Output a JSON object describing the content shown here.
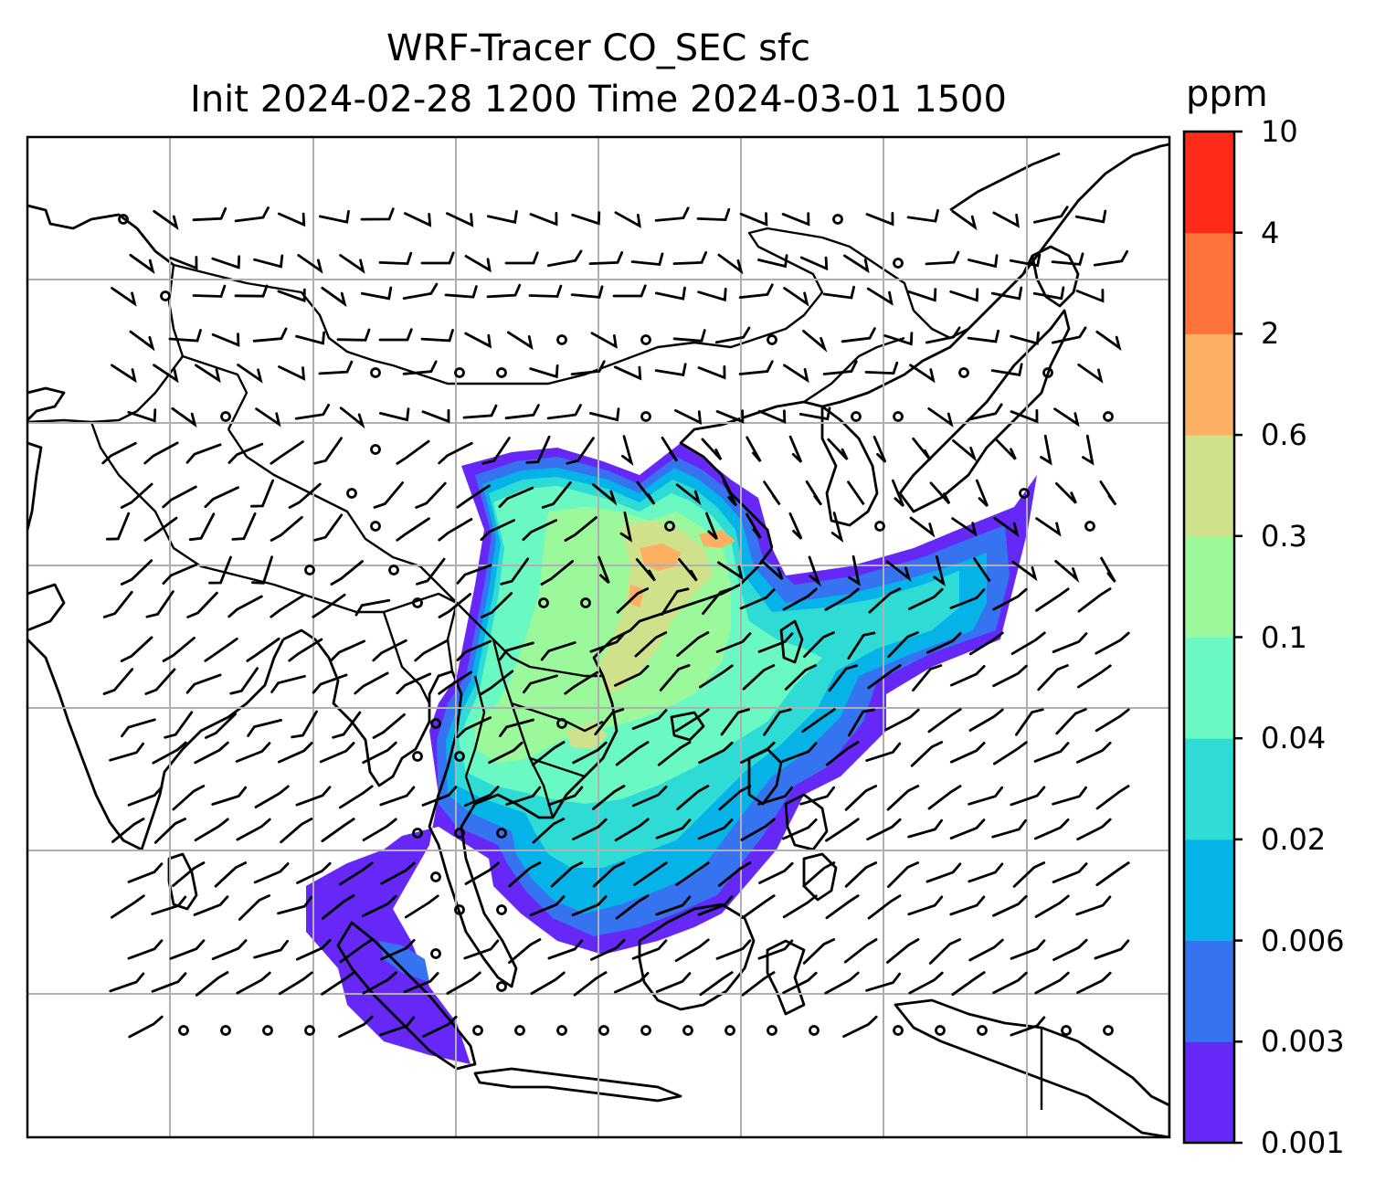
{
  "title": {
    "line1": "WRF-Tracer CO_SEC sfc",
    "line2": "Init 2024-02-28 1200 Time 2024-03-01 1500"
  },
  "colorbar": {
    "unit": "ppm",
    "levels": [
      "0.001",
      "0.003",
      "0.006",
      "0.02",
      "0.04",
      "0.1",
      "0.3",
      "0.6",
      "2",
      "4",
      "10"
    ],
    "colors": [
      "#6628f6",
      "#3573f0",
      "#06b3e9",
      "#2fdbd5",
      "#6af9c3",
      "#9bf99b",
      "#cfe18b",
      "#fdb062",
      "#ff7239",
      "#ff2a17"
    ]
  },
  "map": {
    "region": "South / Southeast / East Asia",
    "features": [
      "coastlines",
      "country borders",
      "lat-lon gridlines",
      "wind barbs",
      "CO tracer concentration shading"
    ],
    "grid": true
  }
}
